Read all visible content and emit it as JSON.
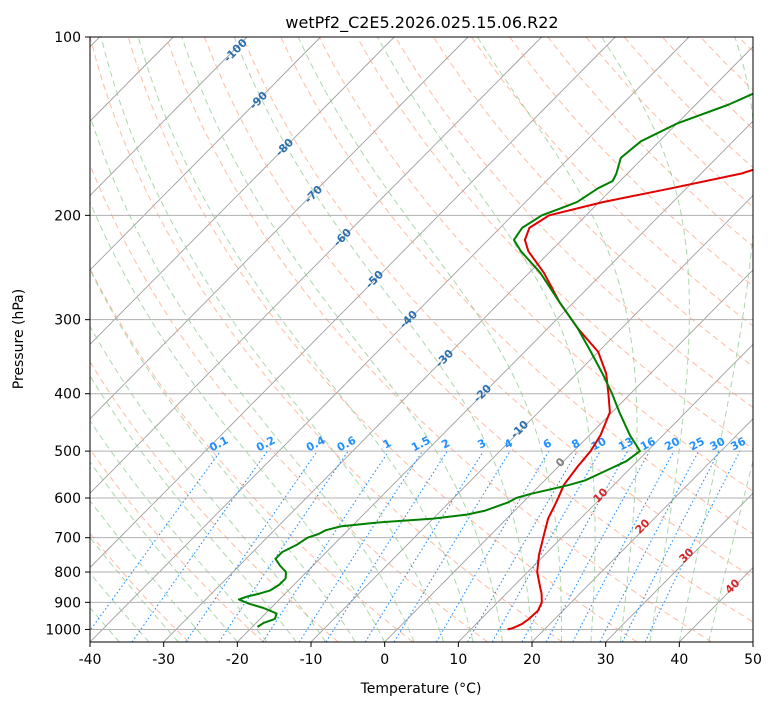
{
  "chart_data": {
    "type": "line",
    "title": "wetPf2_C2E5.2026.025.15.06.R22",
    "xlabel": "Temperature (°C)",
    "ylabel": "Pressure (hPa)",
    "xlim": [
      -40,
      50
    ],
    "ylim": [
      1050,
      100
    ],
    "y_scale": "log",
    "x_ticks": [
      -40,
      -30,
      -20,
      -10,
      0,
      10,
      20,
      30,
      40,
      50
    ],
    "y_ticks": [
      100,
      200,
      300,
      400,
      500,
      600,
      700,
      800,
      900,
      1000
    ],
    "grid": "horizontal",
    "colors": {
      "temperature": "#e00000",
      "dewpoint": "#008000",
      "isotherm": "#a0a0a0",
      "dry_adiabat": "#ffa07a",
      "moist_adiabat": "#90c890",
      "mixing_ratio": "#1e90ff",
      "dry_label": "#2a6fb0",
      "moist_label": "#d62728"
    },
    "series": [
      {
        "key": "temperature",
        "pressure": [
          1000,
          995,
          980,
          960,
          930,
          900,
          870,
          850,
          800,
          750,
          700,
          650,
          620,
          600,
          570,
          530,
          500,
          470,
          430,
          400,
          370,
          340,
          310,
          280,
          250,
          230,
          220,
          210,
          200,
          190,
          180,
          170,
          160,
          150,
          140,
          130,
          120,
          115,
          110,
          105,
          100
        ],
        "values": [
          15.0,
          15.5,
          16.2,
          16.5,
          16.6,
          16.0,
          14.8,
          13.8,
          11.3,
          9.3,
          7.5,
          5.6,
          4.8,
          4.2,
          3.2,
          2.6,
          2.3,
          1.5,
          -0.3,
          -3.0,
          -6.0,
          -10.0,
          -16.0,
          -22.0,
          -28.0,
          -33.0,
          -35.0,
          -36.0,
          -35.0,
          -29.5,
          -22.0,
          -14.5,
          -10.0,
          -8.0,
          -7.5,
          -8.0,
          -8.5,
          -8.5,
          -9.0,
          -9.5,
          -10.5
        ]
      },
      {
        "key": "dewpoint",
        "pressure": [
          990,
          985,
          975,
          960,
          940,
          920,
          905,
          890,
          880,
          870,
          860,
          840,
          820,
          800,
          780,
          760,
          740,
          720,
          700,
          690,
          680,
          670,
          660,
          650,
          640,
          630,
          620,
          610,
          600,
          590,
          580,
          570,
          560,
          540,
          520,
          500,
          470,
          430,
          400,
          370,
          340,
          310,
          280,
          250,
          230,
          220,
          210,
          200,
          195,
          190,
          180,
          175,
          170,
          160,
          150,
          140,
          130,
          120,
          110,
          100
        ],
        "values": [
          -19.3,
          -19.2,
          -19.0,
          -18.0,
          -18.5,
          -21.0,
          -23.5,
          -25.5,
          -24.8,
          -23.5,
          -22.5,
          -22.0,
          -22.0,
          -22.8,
          -24.5,
          -26.0,
          -26.0,
          -25.0,
          -24.5,
          -23.5,
          -23.0,
          -21.5,
          -17.0,
          -10.0,
          -6.0,
          -4.0,
          -3.0,
          -2.0,
          -1.5,
          0.0,
          2.0,
          4.0,
          5.5,
          7.0,
          8.5,
          9.0,
          5.5,
          1.0,
          -2.5,
          -6.5,
          -11.0,
          -16.0,
          -22.0,
          -28.5,
          -34.0,
          -36.5,
          -37.0,
          -36.0,
          -34.5,
          -33.0,
          -32.0,
          -31.0,
          -31.5,
          -33.0,
          -32.5,
          -30.0,
          -25.5,
          -22.0,
          -19.5,
          -16.5
        ]
      }
    ],
    "dry_adiabat_labels": [
      "-100",
      "-90",
      "-80",
      "-70",
      "-60",
      "-50",
      "-40",
      "-30",
      "-20",
      "-10"
    ],
    "moist_adiabat_labels": [
      "0",
      "10",
      "20",
      "30",
      "40"
    ],
    "mixing_ratio_labels": [
      "0.1",
      "0.2",
      "0.4",
      "0.6",
      "1",
      "1.5",
      "2",
      "3",
      "4",
      "6",
      "8",
      "10",
      "13",
      "16",
      "20",
      "25",
      "30",
      "36"
    ]
  }
}
